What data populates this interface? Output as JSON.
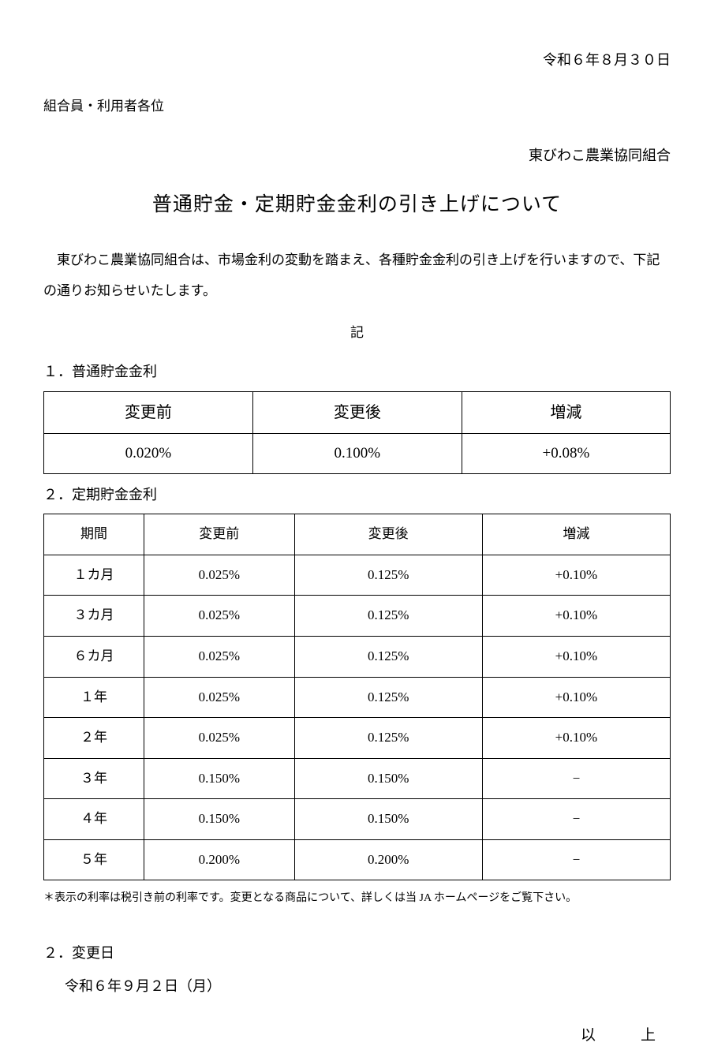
{
  "header": {
    "date": "令和６年８月３０日",
    "addressee": "組合員・利用者各位",
    "org_name": "東びわこ農業協同組合"
  },
  "title": "普通貯金・定期貯金金利の引き上げについて",
  "intro": "東びわこ農業協同組合は、市場金利の変動を踏まえ、各種貯金金利の引き上げを行いますので、下記の通りお知らせいたします。",
  "ki": "記",
  "section1": {
    "heading": "１．普通貯金金利",
    "table": {
      "columns": [
        "変更前",
        "変更後",
        "増減"
      ],
      "row": [
        "0.020%",
        "0.100%",
        "+0.08%"
      ]
    }
  },
  "section2": {
    "heading": "２．定期貯金金利",
    "table": {
      "columns": [
        "期間",
        "変更前",
        "変更後",
        "増減"
      ],
      "rows": [
        [
          "１カ月",
          "0.025%",
          "0.125%",
          "+0.10%"
        ],
        [
          "３カ月",
          "0.025%",
          "0.125%",
          "+0.10%"
        ],
        [
          "６カ月",
          "0.025%",
          "0.125%",
          "+0.10%"
        ],
        [
          "１年",
          "0.025%",
          "0.125%",
          "+0.10%"
        ],
        [
          "２年",
          "0.025%",
          "0.125%",
          "+0.10%"
        ],
        [
          "３年",
          "0.150%",
          "0.150%",
          "−"
        ],
        [
          "４年",
          "0.150%",
          "0.150%",
          "−"
        ],
        [
          "５年",
          "0.200%",
          "0.200%",
          "−"
        ]
      ]
    }
  },
  "note": "＊表示の利率は税引き前の利率です。変更となる商品について、詳しくは当 JA ホームページをご覧下さい。",
  "section3": {
    "heading": "２．変更日",
    "date": "令和６年９月２日（月）"
  },
  "ijou": "以　上"
}
